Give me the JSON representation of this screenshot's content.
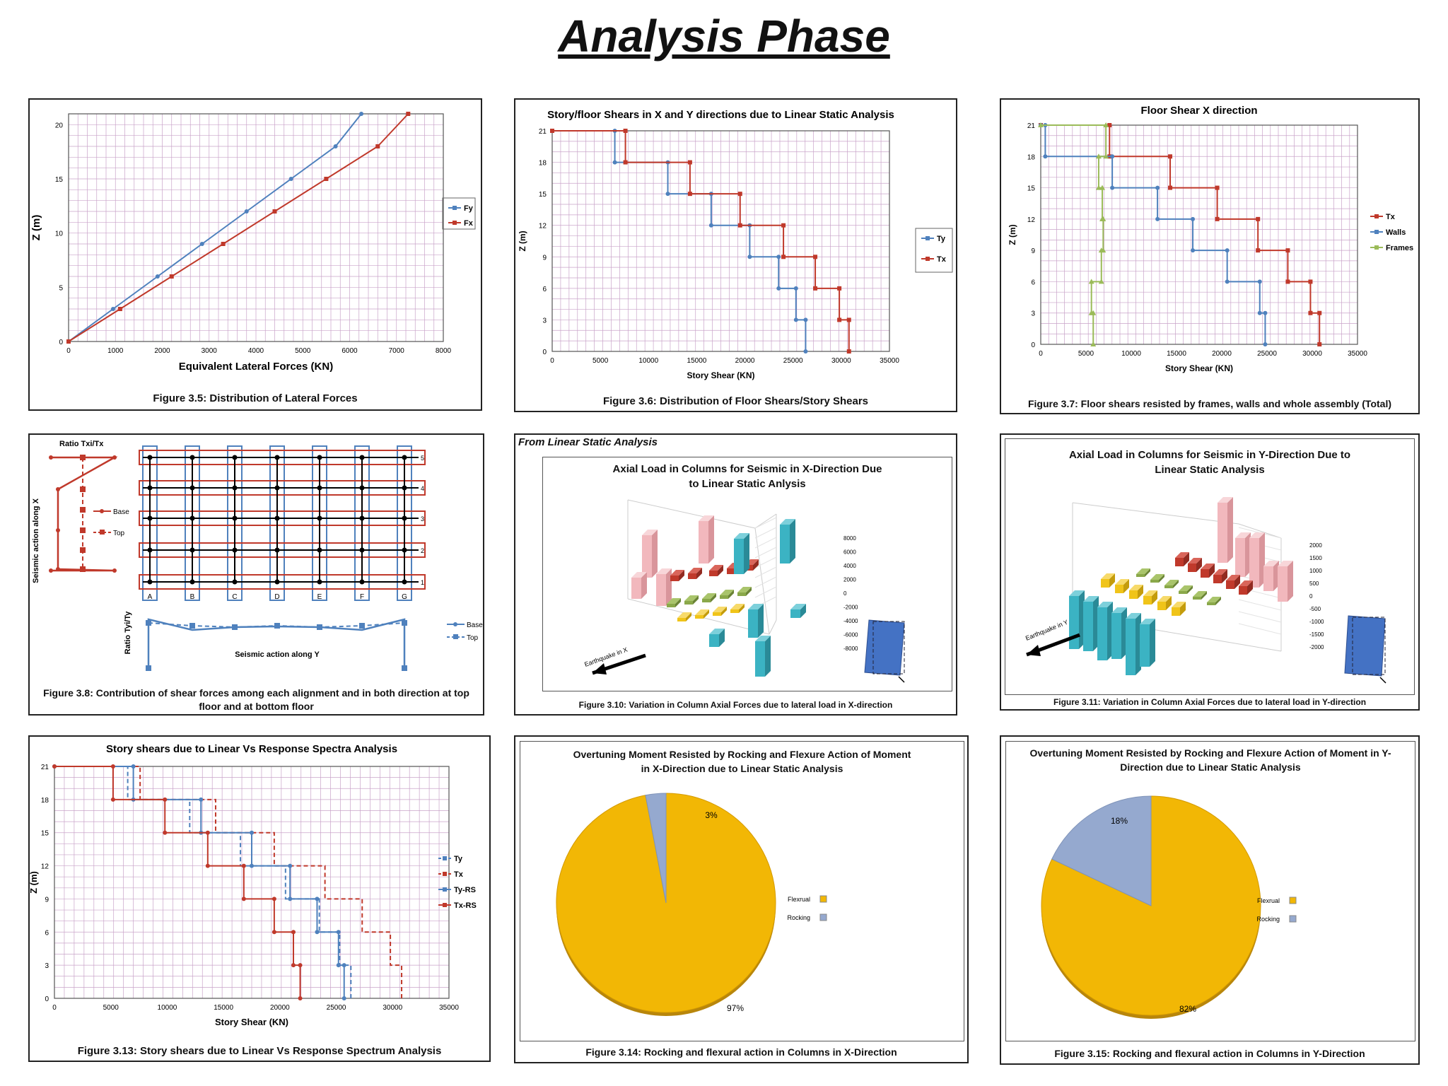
{
  "page": {
    "title": "Analysis Phase"
  },
  "colors": {
    "red": "#c0392b",
    "blue": "#4f81bd",
    "green": "#9bbb59",
    "grid": "#c9a3c9",
    "pie_flex": "#f2b705",
    "pie_rock": "#95a9cf"
  },
  "figures": {
    "f35": {
      "caption": "Figure 3.5: Distribution of Lateral Forces"
    },
    "f36": {
      "caption": "Figure 3.6: Distribution of Floor Shears/Story Shears"
    },
    "f37": {
      "caption": "Figure 3.7: Floor shears resisted by frames, walls and whole assembly (Total)"
    },
    "f38": {
      "caption": "Figure 3.8: Contribution of shear forces among each alignment and in both direction at top floor and at bottom floor",
      "ratio_x_label": "Ratio Txi/Tx",
      "seismic_x_label": "Seismic action along X",
      "ratio_y_label": "Ratio Tyi/Ty",
      "seismic_y_label": "Seismic action along Y",
      "legend": [
        "Base",
        "Top"
      ],
      "col_labels": [
        "A",
        "B",
        "C",
        "D",
        "E",
        "F",
        "G"
      ],
      "row_labels": [
        "5",
        "4",
        "3",
        "2",
        "1"
      ]
    },
    "f310": {
      "note": "From Linear Static Analysis",
      "inner_title": "Axial Load in Columns for Seismic in X-Direction Due to Linear Static Anlysis",
      "caption": "Figure 3.10: Variation in Column Axial Forces due to lateral load in X-direction",
      "arrow_label": "Earthquake in X",
      "axis_ticks": [
        "8000",
        "6000",
        "4000",
        "2000",
        "0",
        "-2000",
        "-4000",
        "-6000",
        "-8000"
      ]
    },
    "f311": {
      "inner_title": "Axial Load in Columns for Seismic in Y-Direction Due to Linear Static Analysis",
      "caption": "Figure 3.11: Variation in Column Axial Forces due to lateral load in Y-direction",
      "arrow_label": "Earthquake in Y",
      "axis_ticks": [
        "2000",
        "1500",
        "1000",
        "500",
        "0",
        "-500",
        "-1000",
        "-1500",
        "-2000"
      ]
    },
    "f313": {
      "caption": "Figure 3.13: Story shears due to Linear Vs Response Spectrum Analysis"
    },
    "f314": {
      "inner_title": "Overtuning Moment Resisted by Rocking and Flexure Action of Moment in X-Direction due to Linear Static Analysis",
      "caption": "Figure 3.14: Rocking and flexural action in Columns in X-Direction"
    },
    "f315": {
      "inner_title": "Overtuning Moment Resisted by Rocking and Flexure Action of Moment in Y-Direction due to Linear Static Analysis",
      "caption": "Figure 3.15: Rocking and flexural action in Columns in Y-Direction"
    }
  },
  "chart_data": [
    {
      "id": "f35",
      "type": "line",
      "title": "",
      "xlabel": "Equivalent Lateral Forces (KN)",
      "ylabel": "Z (m)",
      "xlim": [
        0,
        8000
      ],
      "ylim": [
        0,
        21
      ],
      "xticks": [
        0,
        1000,
        2000,
        3000,
        4000,
        5000,
        6000,
        7000,
        8000
      ],
      "yticks": [
        0,
        5,
        10,
        15,
        20
      ],
      "grid": true,
      "legend": "right",
      "series": [
        {
          "name": "Fy",
          "color": "#4f81bd",
          "points": [
            [
              0,
              0
            ],
            [
              950,
              3
            ],
            [
              1900,
              6
            ],
            [
              2850,
              9
            ],
            [
              3800,
              12
            ],
            [
              4750,
              15
            ],
            [
              5700,
              18
            ],
            [
              6250,
              21
            ]
          ]
        },
        {
          "name": "Fx",
          "color": "#c0392b",
          "points": [
            [
              0,
              0
            ],
            [
              1100,
              3
            ],
            [
              2200,
              6
            ],
            [
              3300,
              9
            ],
            [
              4400,
              12
            ],
            [
              5500,
              15
            ],
            [
              6600,
              18
            ],
            [
              7250,
              21
            ]
          ]
        }
      ]
    },
    {
      "id": "f36",
      "type": "line",
      "title": "Story/floor Shears in X and Y directions due to Linear Static Analysis",
      "xlabel": "Story Shear (KN)",
      "ylabel": "Z (m)",
      "xlim": [
        0,
        35000
      ],
      "ylim": [
        0,
        21
      ],
      "xticks": [
        0,
        5000,
        10000,
        15000,
        20000,
        25000,
        30000,
        35000
      ],
      "yticks": [
        0,
        3,
        6,
        9,
        12,
        15,
        18,
        21
      ],
      "grid": true,
      "legend": "right",
      "series": [
        {
          "name": "Ty",
          "color": "#4f81bd",
          "points": [
            [
              26300,
              0
            ],
            [
              26300,
              3
            ],
            [
              25300,
              3
            ],
            [
              25300,
              6
            ],
            [
              23500,
              6
            ],
            [
              23500,
              9
            ],
            [
              20500,
              9
            ],
            [
              20500,
              12
            ],
            [
              16500,
              12
            ],
            [
              16500,
              15
            ],
            [
              12000,
              15
            ],
            [
              12000,
              18
            ],
            [
              6500,
              18
            ],
            [
              6500,
              21
            ],
            [
              0,
              21
            ]
          ]
        },
        {
          "name": "Tx",
          "color": "#c0392b",
          "points": [
            [
              30800,
              0
            ],
            [
              30800,
              3
            ],
            [
              29800,
              3
            ],
            [
              29800,
              6
            ],
            [
              27300,
              6
            ],
            [
              27300,
              9
            ],
            [
              24000,
              9
            ],
            [
              24000,
              12
            ],
            [
              19500,
              12
            ],
            [
              19500,
              15
            ],
            [
              14300,
              15
            ],
            [
              14300,
              18
            ],
            [
              7600,
              18
            ],
            [
              7600,
              21
            ],
            [
              0,
              21
            ]
          ]
        }
      ]
    },
    {
      "id": "f37",
      "type": "line",
      "title": "Floor Shear X direction",
      "xlabel": "Story Shear (KN)",
      "ylabel": "Z (m)",
      "xlim": [
        0,
        35000
      ],
      "ylim": [
        0,
        21
      ],
      "xticks": [
        0,
        5000,
        10000,
        15000,
        20000,
        25000,
        30000,
        35000
      ],
      "yticks": [
        0,
        3,
        6,
        9,
        12,
        15,
        18,
        21
      ],
      "grid": true,
      "legend": "right",
      "series": [
        {
          "name": "Tx",
          "color": "#c0392b",
          "points": [
            [
              30800,
              0
            ],
            [
              30800,
              3
            ],
            [
              29800,
              3
            ],
            [
              29800,
              6
            ],
            [
              27300,
              6
            ],
            [
              27300,
              9
            ],
            [
              24000,
              9
            ],
            [
              24000,
              12
            ],
            [
              19500,
              12
            ],
            [
              19500,
              15
            ],
            [
              14300,
              15
            ],
            [
              14300,
              18
            ],
            [
              7600,
              18
            ],
            [
              7600,
              21
            ],
            [
              0,
              21
            ]
          ]
        },
        {
          "name": "Walls",
          "color": "#4f81bd",
          "points": [
            [
              24800,
              0
            ],
            [
              24800,
              3
            ],
            [
              24200,
              3
            ],
            [
              24200,
              6
            ],
            [
              20600,
              6
            ],
            [
              20600,
              9
            ],
            [
              16800,
              9
            ],
            [
              16800,
              12
            ],
            [
              12900,
              12
            ],
            [
              12900,
              15
            ],
            [
              7900,
              15
            ],
            [
              7900,
              18
            ],
            [
              500,
              18
            ],
            [
              500,
              21
            ],
            [
              0,
              21
            ]
          ]
        },
        {
          "name": "Frames",
          "color": "#9bbb59",
          "points": [
            [
              5800,
              0
            ],
            [
              5800,
              3
            ],
            [
              5600,
              3
            ],
            [
              5600,
              6
            ],
            [
              6700,
              6
            ],
            [
              6700,
              9
            ],
            [
              6900,
              9
            ],
            [
              6900,
              12
            ],
            [
              6800,
              12
            ],
            [
              6800,
              15
            ],
            [
              6400,
              15
            ],
            [
              6400,
              18
            ],
            [
              7200,
              18
            ],
            [
              7200,
              21
            ],
            [
              0,
              21
            ]
          ]
        }
      ]
    },
    {
      "id": "f313",
      "type": "line",
      "title": "Story shears due to Linear Vs Response Spectra Analysis",
      "xlabel": "Story Shear (KN)",
      "ylabel": "Z (m)",
      "xlim": [
        0,
        35000
      ],
      "ylim": [
        0,
        21
      ],
      "xticks": [
        0,
        5000,
        10000,
        15000,
        20000,
        25000,
        30000,
        35000
      ],
      "yticks": [
        0,
        3,
        6,
        9,
        12,
        15,
        18,
        21
      ],
      "grid": true,
      "legend": "right",
      "series": [
        {
          "name": "Ty",
          "color": "#4f81bd",
          "dashed": true,
          "points": [
            [
              26300,
              0
            ],
            [
              26300,
              3
            ],
            [
              25300,
              3
            ],
            [
              25300,
              6
            ],
            [
              23500,
              6
            ],
            [
              23500,
              9
            ],
            [
              20500,
              9
            ],
            [
              20500,
              12
            ],
            [
              16500,
              12
            ],
            [
              16500,
              15
            ],
            [
              12000,
              15
            ],
            [
              12000,
              18
            ],
            [
              6500,
              18
            ],
            [
              6500,
              21
            ],
            [
              0,
              21
            ]
          ]
        },
        {
          "name": "Tx",
          "color": "#c0392b",
          "dashed": true,
          "points": [
            [
              30800,
              0
            ],
            [
              30800,
              3
            ],
            [
              29800,
              3
            ],
            [
              29800,
              6
            ],
            [
              27300,
              6
            ],
            [
              27300,
              9
            ],
            [
              24000,
              9
            ],
            [
              24000,
              12
            ],
            [
              19500,
              12
            ],
            [
              19500,
              15
            ],
            [
              14300,
              15
            ],
            [
              14300,
              18
            ],
            [
              7600,
              18
            ],
            [
              7600,
              21
            ],
            [
              0,
              21
            ]
          ]
        },
        {
          "name": "Ty-RS",
          "color": "#4f81bd",
          "points": [
            [
              25700,
              0
            ],
            [
              25700,
              3
            ],
            [
              25200,
              3
            ],
            [
              25200,
              6
            ],
            [
              23300,
              6
            ],
            [
              23300,
              9
            ],
            [
              20900,
              9
            ],
            [
              20900,
              12
            ],
            [
              17500,
              12
            ],
            [
              17500,
              15
            ],
            [
              13000,
              15
            ],
            [
              13000,
              18
            ],
            [
              7000,
              18
            ],
            [
              7000,
              21
            ],
            [
              0,
              21
            ]
          ]
        },
        {
          "name": "Tx-RS",
          "color": "#c0392b",
          "points": [
            [
              21800,
              0
            ],
            [
              21800,
              3
            ],
            [
              21200,
              3
            ],
            [
              21200,
              6
            ],
            [
              19500,
              6
            ],
            [
              19500,
              9
            ],
            [
              16800,
              9
            ],
            [
              16800,
              12
            ],
            [
              13600,
              12
            ],
            [
              13600,
              15
            ],
            [
              9800,
              15
            ],
            [
              9800,
              18
            ],
            [
              5200,
              18
            ],
            [
              5200,
              21
            ],
            [
              0,
              21
            ]
          ]
        }
      ]
    },
    {
      "id": "f314",
      "type": "pie",
      "slices": [
        {
          "name": "Flexrual",
          "value": 97,
          "label": "97%",
          "color": "#f2b705"
        },
        {
          "name": "Rocking",
          "value": 3,
          "label": "3%",
          "color": "#95a9cf"
        }
      ]
    },
    {
      "id": "f315",
      "type": "pie",
      "slices": [
        {
          "name": "Flexrual",
          "value": 82,
          "label": "82%",
          "color": "#f2b705"
        },
        {
          "name": "Rocking",
          "value": 18,
          "label": "18%",
          "color": "#95a9cf"
        }
      ]
    }
  ]
}
